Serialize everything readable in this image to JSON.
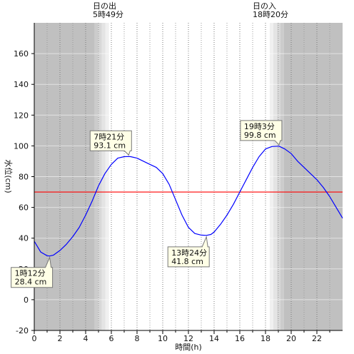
{
  "chart_data": {
    "type": "line",
    "xlabel": "時間(h)",
    "ylabel": "水位(cm)",
    "xlim": [
      0,
      24
    ],
    "ylim": [
      -20,
      180
    ],
    "x_ticks": [
      0,
      2,
      4,
      6,
      8,
      10,
      12,
      14,
      16,
      18,
      20,
      22
    ],
    "y_ticks": [
      -20,
      0,
      20,
      40,
      60,
      80,
      100,
      120,
      140,
      160
    ],
    "grid": true,
    "sunrise": {
      "label": "日の出",
      "time": "5時49分",
      "hour": 5.82
    },
    "sunset": {
      "label": "日の入",
      "time": "18時20分",
      "hour": 18.33
    },
    "reference_line": {
      "value": 70,
      "color": "#ff0000"
    },
    "series": [
      {
        "color": "#0000ff",
        "x": [
          0,
          0.5,
          1,
          1.2,
          1.5,
          2,
          2.5,
          3,
          3.5,
          4,
          4.5,
          5,
          5.5,
          6,
          6.5,
          7,
          7.35,
          7.5,
          8,
          8.5,
          9,
          9.5,
          10,
          10.5,
          11,
          11.5,
          12,
          12.5,
          13,
          13.4,
          13.75,
          14,
          14.5,
          15,
          15.5,
          16,
          16.5,
          17,
          17.5,
          18,
          18.5,
          19,
          19.05,
          19.5,
          20,
          20.5,
          21,
          21.5,
          22,
          22.5,
          23,
          23.5,
          24
        ],
        "y": [
          38,
          31,
          28.6,
          28.4,
          29,
          32,
          36,
          41,
          47,
          55,
          64,
          74,
          82,
          88,
          92,
          93,
          93.1,
          93,
          92,
          90,
          88,
          86,
          82,
          75,
          65,
          55,
          47,
          43,
          42,
          41.8,
          42.4,
          44,
          49,
          55,
          62,
          70,
          78,
          86,
          93,
          98,
          99.6,
          99.8,
          99.8,
          98,
          95,
          90,
          86,
          82,
          78,
          73,
          67,
          60,
          53
        ]
      }
    ],
    "annotations": [
      {
        "time": "1時12分",
        "value": "28.4 cm",
        "hour": 1.2,
        "level": 28.4,
        "placement": "below"
      },
      {
        "time": "7時21分",
        "value": "93.1 cm",
        "hour": 7.35,
        "level": 93.1,
        "placement": "above"
      },
      {
        "time": "13時24分",
        "value": "41.8 cm",
        "hour": 13.4,
        "level": 41.8,
        "placement": "below"
      },
      {
        "time": "19時3分",
        "value": "99.8 cm",
        "hour": 19.05,
        "level": 99.8,
        "placement": "above"
      }
    ]
  }
}
